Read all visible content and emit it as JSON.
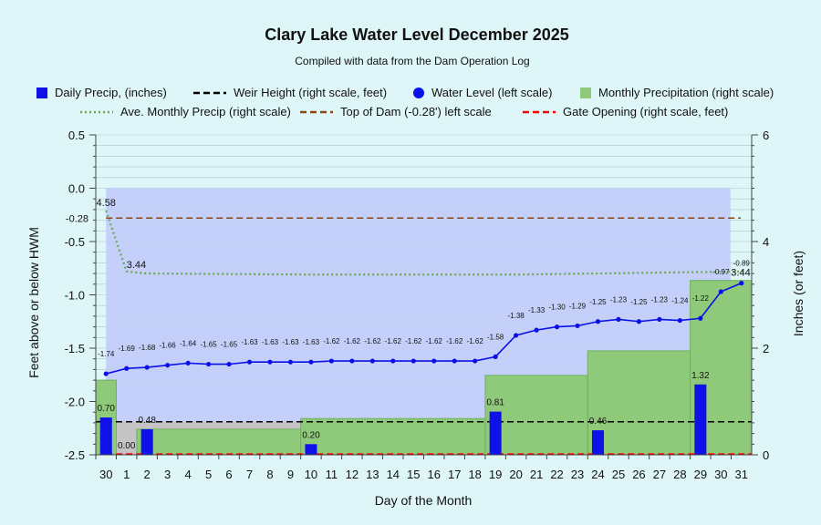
{
  "chart_data": {
    "type": "combo",
    "title": "Clary Lake Water Level December 2025",
    "subtitle": "Compiled with data from the Dam Operation Log",
    "xlabel": "Day of the Month",
    "ylabel_left": "Feet above or below HWM",
    "ylabel_right": "Inches (or feet)",
    "x_tick_labels": [
      "30",
      "1",
      "2",
      "3",
      "4",
      "5",
      "6",
      "7",
      "8",
      "9",
      "10",
      "11",
      "12",
      "13",
      "14",
      "15",
      "16",
      "17",
      "18",
      "19",
      "20",
      "21",
      "22",
      "23",
      "24",
      "25",
      "26",
      "27",
      "28",
      "29",
      "30",
      "31"
    ],
    "left_axis": {
      "min": -2.5,
      "max": 0.5,
      "ticks": [
        "-2.5",
        "-2.0",
        "-1.5",
        "-1.0",
        "-0.5",
        "0.0",
        "0.5"
      ]
    },
    "right_axis": {
      "min": 0,
      "max": 6,
      "ticks": [
        "0",
        "2",
        "4",
        "6"
      ]
    },
    "top_of_dam_label": "-0.28",
    "legend": [
      {
        "label": "Daily Precip, (inches)",
        "kind": "bar",
        "color": "#1010e8"
      },
      {
        "label": "Weir Height (right scale, feet)",
        "kind": "dash",
        "color": "#000000"
      },
      {
        "label": "Water Level (left scale)",
        "kind": "dot",
        "color": "#0a10e8"
      },
      {
        "label": "Monthly Precipitation (right scale)",
        "kind": "area",
        "color": "#8fc97a"
      },
      {
        "label": "Ave. Monthly Precip (right scale)",
        "kind": "dots",
        "color": "#6aa84f"
      },
      {
        "label": "Top of Dam (-0.28') left scale",
        "kind": "dash",
        "color": "#8b4513"
      },
      {
        "label": "Gate Opening (right scale, feet)",
        "kind": "dash",
        "color": "#ff0000"
      }
    ],
    "series": {
      "water_level": {
        "name": "Water Level (left scale)",
        "x": [
          0,
          1,
          2,
          3,
          4,
          5,
          6,
          7,
          8,
          9,
          10,
          11,
          12,
          13,
          14,
          15,
          16,
          17,
          18,
          19,
          20,
          21,
          22,
          23,
          24,
          25,
          26,
          27,
          28,
          29,
          30,
          31
        ],
        "values": [
          -1.74,
          -1.69,
          -1.68,
          -1.66,
          -1.64,
          -1.65,
          -1.65,
          -1.63,
          -1.63,
          -1.63,
          -1.63,
          -1.62,
          -1.62,
          -1.62,
          -1.62,
          -1.62,
          -1.62,
          -1.62,
          -1.62,
          -1.58,
          -1.38,
          -1.33,
          -1.3,
          -1.29,
          -1.25,
          -1.23,
          -1.25,
          -1.23,
          -1.24,
          -1.22,
          -0.97,
          -0.89
        ],
        "labels": [
          "-1.74",
          "-1.69",
          "-1.68",
          "-1.66",
          "-1.64",
          "-1.65",
          "-1.65",
          "-1.63",
          "-1.63",
          "-1.63",
          "-1.63",
          "-1.62",
          "-1.62",
          "-1.62",
          "-1.62",
          "-1.62",
          "-1.62",
          "-1.62",
          "-1.62",
          "-1.58",
          "-1.38",
          "-1.33",
          "-1.30",
          "-1.29",
          "-1.25",
          "-1.23",
          "-1.25",
          "-1.23",
          "-1.24",
          "-1.22",
          "-0.97",
          "-0.89"
        ]
      },
      "daily_precip": {
        "name": "Daily Precip, (inches)",
        "points": [
          {
            "x": 0,
            "value": 0.7,
            "label": "0.70"
          },
          {
            "x": 1,
            "value": 0.0,
            "label": "0.00"
          },
          {
            "x": 2,
            "value": 0.48,
            "label": "0.48"
          },
          {
            "x": 10,
            "value": 0.2,
            "label": "0.20"
          },
          {
            "x": 19,
            "value": 0.81,
            "label": "0.81"
          },
          {
            "x": 24,
            "value": 0.46,
            "label": "0.46"
          },
          {
            "x": 29,
            "value": 1.32,
            "label": "1.32"
          }
        ]
      },
      "monthly_precip": {
        "name": "Monthly Precipitation (right scale)",
        "nov_value": 1.4,
        "steps": [
          {
            "from": 1,
            "value": 0.0
          },
          {
            "from": 2,
            "value": 0.48
          },
          {
            "from": 10,
            "value": 0.68
          },
          {
            "from": 19,
            "value": 1.49
          },
          {
            "from": 24,
            "value": 1.95
          },
          {
            "from": 29,
            "value": 3.27
          }
        ],
        "end_label": "3.44",
        "start_label": "4.58"
      },
      "ave_monthly_precip": {
        "name": "Ave. Monthly Precip (right scale)",
        "x": [
          0,
          1,
          2,
          10,
          20,
          31
        ],
        "values": [
          4.58,
          3.44,
          3.4,
          3.38,
          3.38,
          3.44
        ],
        "start_label": "4.58",
        "mid_label": "3.44"
      },
      "weir_height": {
        "name": "Weir Height (right scale, feet)",
        "value": 0.62
      },
      "top_of_dam": {
        "name": "Top of Dam (-0.28') left scale",
        "value": -0.28
      },
      "gate_opening": {
        "name": "Gate Opening (right scale, feet)",
        "value": 0.0
      },
      "weir_gray_region": {
        "from": 0.5,
        "to": 9.5,
        "value": 0.62
      }
    },
    "colors": {
      "plot_bg": "#dff6f8",
      "blue_band": "#c2ccf9",
      "green_area": "#8fc97a",
      "green_edge": "#70b060",
      "bar": "#1010e8",
      "water": "#0a10e8",
      "dam": "#8b4513",
      "gate": "#ff0000",
      "gray": "#c4c4c4",
      "avg": "#6aa84f"
    }
  }
}
